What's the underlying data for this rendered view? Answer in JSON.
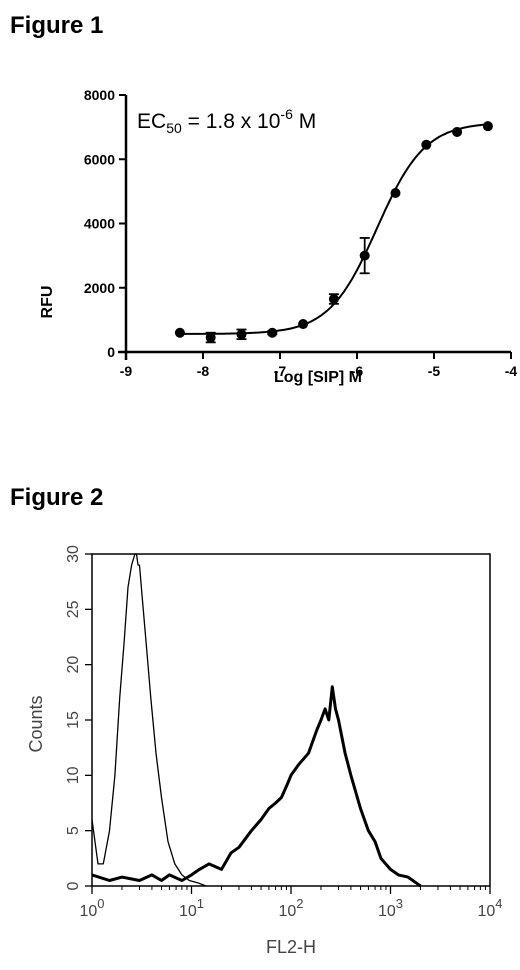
{
  "figures": [
    {
      "title": "Figure 1"
    },
    {
      "title": "Figure 2"
    }
  ],
  "chart_data": [
    {
      "type": "scatter",
      "title": "",
      "xlabel": "Log [SIP] M",
      "ylabel": "RFU",
      "xlim": [
        -9,
        -4
      ],
      "ylim": [
        0,
        8000
      ],
      "xticks": [
        "-9",
        "-8",
        "-7",
        "-6",
        "-5",
        "-4"
      ],
      "yticks": [
        "0",
        "2000",
        "4000",
        "6000",
        "8000"
      ],
      "annotation": {
        "base": "EC",
        "sub": "50",
        "middle": " = 1.8 x 10",
        "sup": "-6",
        "end": " M"
      },
      "grid": false,
      "series": [
        {
          "x": [
            -8.3,
            -7.9,
            -7.5,
            -7.1,
            -6.7,
            -6.3,
            -5.9,
            -5.5,
            -5.1,
            -4.7,
            -4.3
          ],
          "y": [
            600,
            450,
            550,
            600,
            870,
            1650,
            3000,
            4950,
            6450,
            6850,
            7030
          ],
          "error": [
            0,
            150,
            150,
            50,
            0,
            150,
            550,
            0,
            0,
            0,
            0
          ]
        }
      ],
      "fit": {
        "model": "sigmoid",
        "bottom": 560,
        "top": 7150,
        "logEC50": -5.74,
        "hill": 1.4
      }
    },
    {
      "type": "line",
      "title": "",
      "xlabel": "FL2-H",
      "ylabel": "Counts",
      "xscale": "log",
      "xlim": [
        1,
        10000
      ],
      "ylim": [
        0,
        30
      ],
      "xticks": [
        {
          "base": "10",
          "exp": "0"
        },
        {
          "base": "10",
          "exp": "1"
        },
        {
          "base": "10",
          "exp": "2"
        },
        {
          "base": "10",
          "exp": "3"
        },
        {
          "base": "10",
          "exp": "4"
        }
      ],
      "yticks": [
        "0",
        "5",
        "10",
        "15",
        "20",
        "25",
        "30"
      ],
      "grid": false,
      "series": [
        {
          "x": [
            1,
            1.15,
            1.3,
            1.5,
            1.7,
            1.9,
            2.1,
            2.3,
            2.5,
            2.7,
            2.8,
            2.9,
            3.0,
            3.2,
            3.5,
            3.9,
            4.4,
            5.0,
            5.8,
            6.8,
            8.0,
            9.5,
            11.5,
            14
          ],
          "y": [
            6,
            2,
            2,
            5,
            10,
            17,
            22,
            27,
            29,
            30,
            30,
            29,
            29,
            26,
            22,
            17,
            12,
            8,
            4,
            2,
            1,
            0.5,
            0.3,
            0
          ]
        },
        {
          "x": [
            1,
            1.5,
            2,
            3,
            4,
            5,
            6,
            8,
            10,
            12,
            15,
            20,
            25,
            30,
            40,
            50,
            60,
            70,
            80,
            90,
            100,
            120,
            150,
            180,
            200,
            220,
            240,
            260,
            280,
            300,
            350,
            400,
            500,
            600,
            700,
            800,
            1000,
            1200,
            1500,
            1800,
            2000
          ],
          "y": [
            1,
            0.5,
            0.8,
            0.5,
            1,
            0.5,
            1,
            0.5,
            1,
            1.5,
            2,
            1.5,
            3,
            3.5,
            5,
            6,
            7,
            7.5,
            8,
            9,
            10,
            11,
            12,
            14,
            15,
            16,
            15,
            18,
            16,
            15,
            12,
            10,
            7,
            5,
            4,
            2.5,
            1.5,
            1,
            0.8,
            0.3,
            0
          ]
        }
      ]
    }
  ]
}
